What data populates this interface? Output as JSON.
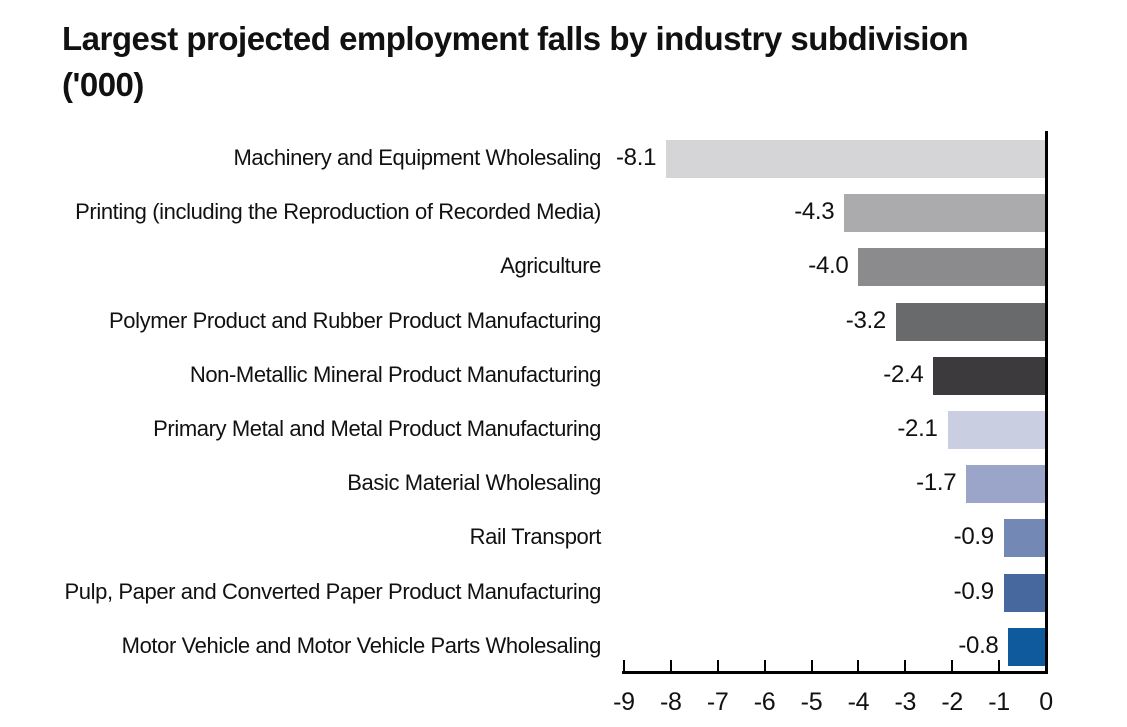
{
  "title": "Largest projected employment falls by industry subdivision ('000)",
  "chart_data": {
    "type": "bar",
    "orientation": "horizontal",
    "title": "Largest projected employment falls by industry subdivision ('000)",
    "categories": [
      "Machinery and Equipment Wholesaling",
      "Printing (including the Reproduction of Recorded Media)",
      "Agriculture",
      "Polymer Product and Rubber Product Manufacturing",
      "Non-Metallic Mineral Product Manufacturing",
      "Primary Metal and Metal Product Manufacturing",
      "Basic Material Wholesaling",
      "Rail Transport",
      "Pulp, Paper and Converted Paper Product Manufacturing",
      "Motor Vehicle and Motor Vehicle Parts Wholesaling"
    ],
    "values": [
      -8.1,
      -4.3,
      -4.0,
      -3.2,
      -2.4,
      -2.1,
      -1.7,
      -0.9,
      -0.9,
      -0.8
    ],
    "value_labels": [
      "-8.1",
      "-4.3",
      "-4.0",
      "-3.2",
      "-2.4",
      "-2.1",
      "-1.7",
      "-0.9",
      "-0.9",
      "-0.8"
    ],
    "bar_colors": [
      "#d5d5d7",
      "#ababad",
      "#8b8b8d",
      "#696a6c",
      "#3d3a3e",
      "#c9cfe1",
      "#9aa5c9",
      "#7488b5",
      "#47689f",
      "#0e5a9d"
    ],
    "data_label_position": "left-of-bar",
    "xlim": [
      -9,
      0
    ],
    "x_ticks": [
      -9,
      -8,
      -7,
      -6,
      -5,
      -4,
      -3,
      -2,
      -1,
      0
    ],
    "x_tick_labels": [
      "-9",
      "-8",
      "-7",
      "-6",
      "-5",
      "-4",
      "-3",
      "-2",
      "-1",
      "0"
    ],
    "grid": false,
    "legend": false
  },
  "colors": {
    "axis": "#000000",
    "text": "#111111",
    "background": "#ffffff"
  }
}
